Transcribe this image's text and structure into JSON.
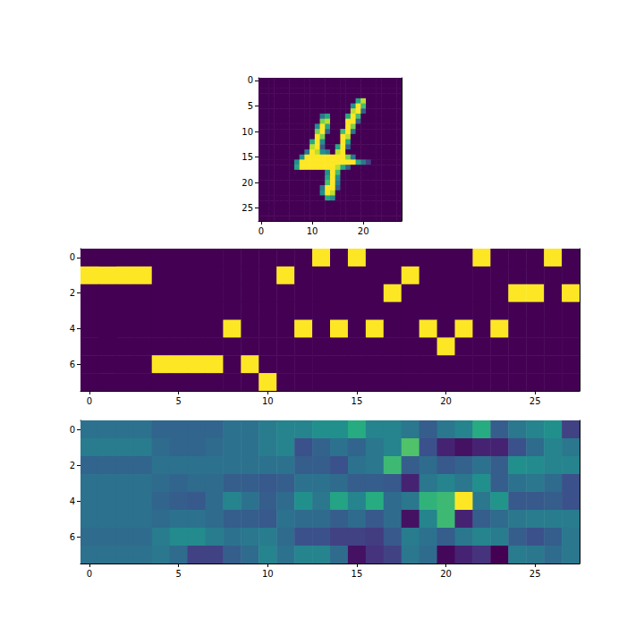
{
  "chart_data": [
    {
      "type": "heatmap",
      "xlim": [
        -0.5,
        27.5
      ],
      "ylim": [
        27.5,
        -0.5
      ],
      "xticks": [
        0,
        10,
        20
      ],
      "yticks": [
        0,
        5,
        10,
        15,
        20,
        25
      ],
      "cells": [
        [
          0,
          0,
          0,
          0,
          0,
          0,
          0,
          0,
          0,
          0,
          0,
          0,
          0,
          0,
          0,
          0,
          0,
          0,
          0,
          0,
          0,
          0,
          0,
          0,
          0,
          0,
          0,
          0
        ],
        [
          0,
          0,
          0,
          0,
          0,
          0,
          0,
          0,
          0,
          0,
          0,
          0,
          0,
          0,
          0,
          0,
          0,
          0,
          0,
          0,
          0,
          0,
          0,
          0,
          0,
          0,
          0,
          0
        ],
        [
          0,
          0,
          0,
          0,
          0,
          0,
          0,
          0,
          0,
          0,
          0,
          0,
          0,
          0,
          0,
          0,
          0,
          0,
          0,
          0,
          0,
          0,
          0,
          0,
          0,
          0,
          0,
          0
        ],
        [
          0,
          0,
          0,
          0,
          0,
          0,
          0,
          0,
          0,
          0,
          0,
          0,
          0,
          0,
          0,
          0,
          0,
          0,
          0,
          0,
          0,
          0,
          0,
          0,
          0,
          0,
          0,
          0
        ],
        [
          0,
          0,
          0,
          0,
          0,
          0,
          0,
          0,
          0,
          0,
          0,
          0,
          0,
          0,
          0,
          0,
          0,
          0,
          0,
          0.6,
          0.9,
          0,
          0,
          0,
          0,
          0,
          0,
          0
        ],
        [
          0,
          0,
          0,
          0,
          0,
          0,
          0,
          0,
          0,
          0,
          0,
          0,
          0,
          0,
          0,
          0,
          0,
          0,
          0.5,
          1,
          0.7,
          0,
          0,
          0,
          0,
          0,
          0,
          0
        ],
        [
          0,
          0,
          0,
          0,
          0,
          0,
          0,
          0,
          0,
          0,
          0,
          0,
          0,
          0,
          0,
          0,
          0,
          0,
          0.9,
          1,
          0.3,
          0,
          0,
          0,
          0,
          0,
          0,
          0
        ],
        [
          0,
          0,
          0,
          0,
          0,
          0,
          0,
          0,
          0,
          0,
          0,
          0,
          0.4,
          0.6,
          0,
          0,
          0,
          0.6,
          1,
          0.7,
          0,
          0,
          0,
          0,
          0,
          0,
          0,
          0
        ],
        [
          0,
          0,
          0,
          0,
          0,
          0,
          0,
          0,
          0,
          0,
          0,
          0,
          0.8,
          0.9,
          0,
          0,
          0,
          1,
          1,
          0.3,
          0,
          0,
          0,
          0,
          0,
          0,
          0,
          0
        ],
        [
          0,
          0,
          0,
          0,
          0,
          0,
          0,
          0,
          0,
          0,
          0,
          0.5,
          1,
          0.6,
          0,
          0,
          0,
          1,
          0.8,
          0,
          0,
          0,
          0,
          0,
          0,
          0,
          0,
          0
        ],
        [
          0,
          0,
          0,
          0,
          0,
          0,
          0,
          0,
          0,
          0,
          0,
          0.8,
          1,
          0.3,
          0,
          0,
          0.7,
          1,
          0.4,
          0,
          0,
          0,
          0,
          0,
          0,
          0,
          0,
          0
        ],
        [
          0,
          0,
          0,
          0,
          0,
          0,
          0,
          0,
          0,
          0,
          0,
          1,
          0.8,
          0,
          0,
          0,
          1,
          0.9,
          0,
          0,
          0,
          0,
          0,
          0,
          0,
          0,
          0,
          0
        ],
        [
          0,
          0,
          0,
          0,
          0,
          0,
          0,
          0,
          0,
          0,
          0.6,
          1,
          0.5,
          0,
          0,
          0,
          1,
          0.6,
          0,
          0,
          0,
          0,
          0,
          0,
          0,
          0,
          0,
          0
        ],
        [
          0,
          0,
          0,
          0,
          0,
          0,
          0,
          0,
          0,
          0,
          0.9,
          1,
          0.3,
          0,
          0,
          0.6,
          1,
          0.3,
          0,
          0,
          0,
          0,
          0,
          0,
          0,
          0,
          0,
          0
        ],
        [
          0,
          0,
          0,
          0,
          0,
          0,
          0,
          0,
          0,
          0.4,
          1,
          0.9,
          0.5,
          0.4,
          0,
          0.9,
          1,
          0,
          0,
          0,
          0,
          0,
          0,
          0,
          0,
          0,
          0,
          0
        ],
        [
          0,
          0,
          0,
          0,
          0,
          0,
          0,
          0,
          0.5,
          1,
          1,
          1,
          1,
          1,
          1,
          1,
          1,
          0.8,
          0.4,
          0,
          0,
          0,
          0,
          0,
          0,
          0,
          0,
          0
        ],
        [
          0,
          0,
          0,
          0,
          0,
          0,
          0,
          0.5,
          1,
          1,
          1,
          1,
          1,
          1,
          1,
          1,
          1,
          1,
          1,
          0.6,
          0.4,
          0.2,
          0,
          0,
          0,
          0,
          0,
          0
        ],
        [
          0,
          0,
          0,
          0,
          0,
          0,
          0,
          0.6,
          1,
          1,
          1,
          1,
          1,
          1,
          1,
          0.9,
          0.6,
          0.3,
          0,
          0,
          0,
          0,
          0,
          0,
          0,
          0,
          0,
          0
        ],
        [
          0,
          0,
          0,
          0,
          0,
          0,
          0,
          0,
          0,
          0,
          0,
          0,
          0,
          0.5,
          1,
          0.7,
          0,
          0,
          0,
          0,
          0,
          0,
          0,
          0,
          0,
          0,
          0,
          0
        ],
        [
          0,
          0,
          0,
          0,
          0,
          0,
          0,
          0,
          0,
          0,
          0,
          0,
          0,
          0.6,
          1,
          0.5,
          0,
          0,
          0,
          0,
          0,
          0,
          0,
          0,
          0,
          0,
          0,
          0
        ],
        [
          0,
          0,
          0,
          0,
          0,
          0,
          0,
          0,
          0,
          0,
          0,
          0,
          0,
          0.7,
          1,
          0.4,
          0,
          0,
          0,
          0,
          0,
          0,
          0,
          0,
          0,
          0,
          0,
          0
        ],
        [
          0,
          0,
          0,
          0,
          0,
          0,
          0,
          0,
          0,
          0,
          0,
          0,
          0.4,
          1,
          1,
          0.3,
          0,
          0,
          0,
          0,
          0,
          0,
          0,
          0,
          0,
          0,
          0,
          0
        ],
        [
          0,
          0,
          0,
          0,
          0,
          0,
          0,
          0,
          0,
          0,
          0,
          0,
          0.5,
          1,
          0.9,
          0,
          0,
          0,
          0,
          0,
          0,
          0,
          0,
          0,
          0,
          0,
          0,
          0
        ],
        [
          0,
          0,
          0,
          0,
          0,
          0,
          0,
          0,
          0,
          0,
          0,
          0,
          0,
          0.6,
          0.5,
          0,
          0,
          0,
          0,
          0,
          0,
          0,
          0,
          0,
          0,
          0,
          0,
          0
        ],
        [
          0,
          0,
          0,
          0,
          0,
          0,
          0,
          0,
          0,
          0,
          0,
          0,
          0,
          0,
          0,
          0,
          0,
          0,
          0,
          0,
          0,
          0,
          0,
          0,
          0,
          0,
          0,
          0
        ],
        [
          0,
          0,
          0,
          0,
          0,
          0,
          0,
          0,
          0,
          0,
          0,
          0,
          0,
          0,
          0,
          0,
          0,
          0,
          0,
          0,
          0,
          0,
          0,
          0,
          0,
          0,
          0,
          0
        ],
        [
          0,
          0,
          0,
          0,
          0,
          0,
          0,
          0,
          0,
          0,
          0,
          0,
          0,
          0,
          0,
          0,
          0,
          0,
          0,
          0,
          0,
          0,
          0,
          0,
          0,
          0,
          0,
          0
        ],
        [
          0,
          0,
          0,
          0,
          0,
          0,
          0,
          0,
          0,
          0,
          0,
          0,
          0,
          0,
          0,
          0,
          0,
          0,
          0,
          0,
          0,
          0,
          0,
          0,
          0,
          0,
          0,
          0
        ]
      ]
    },
    {
      "type": "heatmap",
      "xlim": [
        -0.5,
        27.5
      ],
      "ylim": [
        7.5,
        -0.5
      ],
      "xticks": [
        0,
        5,
        10,
        15,
        20,
        25
      ],
      "yticks": [
        0,
        2,
        4,
        6
      ],
      "cells": [
        [
          0,
          0,
          0,
          0,
          0,
          0,
          0,
          0,
          0,
          0,
          0,
          0,
          0,
          1,
          0,
          1,
          0,
          0,
          0,
          0,
          0,
          0,
          1,
          0,
          0,
          0,
          1,
          0
        ],
        [
          1,
          1,
          1,
          1,
          0,
          0,
          0,
          0,
          0,
          0,
          0,
          1,
          0,
          0,
          0,
          0,
          0,
          0,
          1,
          0,
          0,
          0,
          0,
          0,
          0,
          0,
          0,
          0
        ],
        [
          0,
          0,
          0,
          0,
          0,
          0,
          0,
          0,
          0,
          0,
          0,
          0,
          0,
          0,
          0,
          0,
          0,
          1,
          0,
          0,
          0,
          0,
          0,
          0,
          1,
          1,
          0,
          1
        ],
        [
          0,
          0,
          0,
          0,
          0,
          0,
          0,
          0,
          0,
          0,
          0,
          0,
          0,
          0,
          0,
          0,
          0,
          0,
          0,
          0,
          0,
          0,
          0,
          0,
          0,
          0,
          0,
          0
        ],
        [
          0,
          0,
          0,
          0,
          0,
          0,
          0,
          0,
          1,
          0,
          0,
          0,
          1,
          0,
          1,
          0,
          1,
          0,
          0,
          1,
          0,
          1,
          0,
          1,
          0,
          0,
          0,
          0
        ],
        [
          0,
          0,
          0,
          0,
          0,
          0,
          0,
          0,
          0,
          0,
          0,
          0,
          0,
          0,
          0,
          0,
          0,
          0,
          0,
          0,
          1,
          0,
          0,
          0,
          0,
          0,
          0,
          0
        ],
        [
          0,
          0,
          0,
          0,
          1,
          1,
          1,
          1,
          0,
          1,
          0,
          0,
          0,
          0,
          0,
          0,
          0,
          0,
          0,
          0,
          0,
          0,
          0,
          0,
          0,
          0,
          0,
          0
        ],
        [
          0,
          0,
          0,
          0,
          0,
          0,
          0,
          0,
          0,
          0,
          1,
          0,
          0,
          0,
          0,
          0,
          0,
          0,
          0,
          0,
          0,
          0,
          0,
          0,
          0,
          0,
          0,
          0
        ]
      ]
    },
    {
      "type": "heatmap",
      "xlim": [
        -0.5,
        27.5
      ],
      "ylim": [
        7.5,
        -0.5
      ],
      "xticks": [
        0,
        5,
        10,
        15,
        20,
        25
      ],
      "yticks": [
        0,
        2,
        4,
        6
      ],
      "cells": [
        [
          0.38,
          0.38,
          0.38,
          0.38,
          0.33,
          0.33,
          0.33,
          0.33,
          0.38,
          0.38,
          0.42,
          0.45,
          0.45,
          0.5,
          0.5,
          0.62,
          0.45,
          0.45,
          0.4,
          0.3,
          0.4,
          0.45,
          0.62,
          0.3,
          0.4,
          0.45,
          0.5,
          0.2
        ],
        [
          0.42,
          0.42,
          0.42,
          0.42,
          0.35,
          0.33,
          0.33,
          0.35,
          0.38,
          0.38,
          0.42,
          0.45,
          0.25,
          0.32,
          0.38,
          0.33,
          0.4,
          0.45,
          0.72,
          0.25,
          0.1,
          0.05,
          0.1,
          0.1,
          0.25,
          0.35,
          0.45,
          0.4
        ],
        [
          0.33,
          0.33,
          0.33,
          0.33,
          0.38,
          0.38,
          0.38,
          0.38,
          0.38,
          0.38,
          0.38,
          0.38,
          0.3,
          0.3,
          0.25,
          0.38,
          0.4,
          0.68,
          0.3,
          0.35,
          0.28,
          0.32,
          0.38,
          0.3,
          0.5,
          0.48,
          0.45,
          0.45
        ],
        [
          0.38,
          0.38,
          0.38,
          0.38,
          0.35,
          0.33,
          0.35,
          0.35,
          0.3,
          0.3,
          0.28,
          0.3,
          0.38,
          0.38,
          0.35,
          0.3,
          0.3,
          0.28,
          0.1,
          0.4,
          0.45,
          0.4,
          0.5,
          0.3,
          0.38,
          0.4,
          0.35,
          0.25
        ],
        [
          0.38,
          0.38,
          0.38,
          0.38,
          0.33,
          0.3,
          0.28,
          0.35,
          0.45,
          0.38,
          0.3,
          0.35,
          0.5,
          0.4,
          0.58,
          0.45,
          0.62,
          0.35,
          0.4,
          0.65,
          0.68,
          1,
          0.4,
          0.52,
          0.28,
          0.28,
          0.3,
          0.25
        ],
        [
          0.38,
          0.38,
          0.38,
          0.38,
          0.35,
          0.38,
          0.38,
          0.35,
          0.3,
          0.3,
          0.28,
          0.38,
          0.35,
          0.35,
          0.3,
          0.35,
          0.28,
          0.35,
          0.05,
          0.45,
          0.68,
          0.1,
          0.3,
          0.35,
          0.4,
          0.42,
          0.42,
          0.42
        ],
        [
          0.35,
          0.35,
          0.35,
          0.35,
          0.42,
          0.48,
          0.48,
          0.42,
          0.38,
          0.4,
          0.42,
          0.35,
          0.25,
          0.25,
          0.2,
          0.2,
          0.18,
          0.28,
          0.42,
          0.38,
          0.3,
          0.4,
          0.45,
          0.42,
          0.3,
          0.25,
          0.3,
          0.4
        ],
        [
          0.38,
          0.38,
          0.38,
          0.38,
          0.4,
          0.35,
          0.2,
          0.2,
          0.3,
          0.35,
          0.45,
          0.38,
          0.45,
          0.45,
          0.35,
          0.05,
          0.15,
          0.2,
          0.4,
          0.35,
          0.02,
          0.1,
          0.15,
          0,
          0.42,
          0.4,
          0.35,
          0.4
        ]
      ]
    }
  ]
}
